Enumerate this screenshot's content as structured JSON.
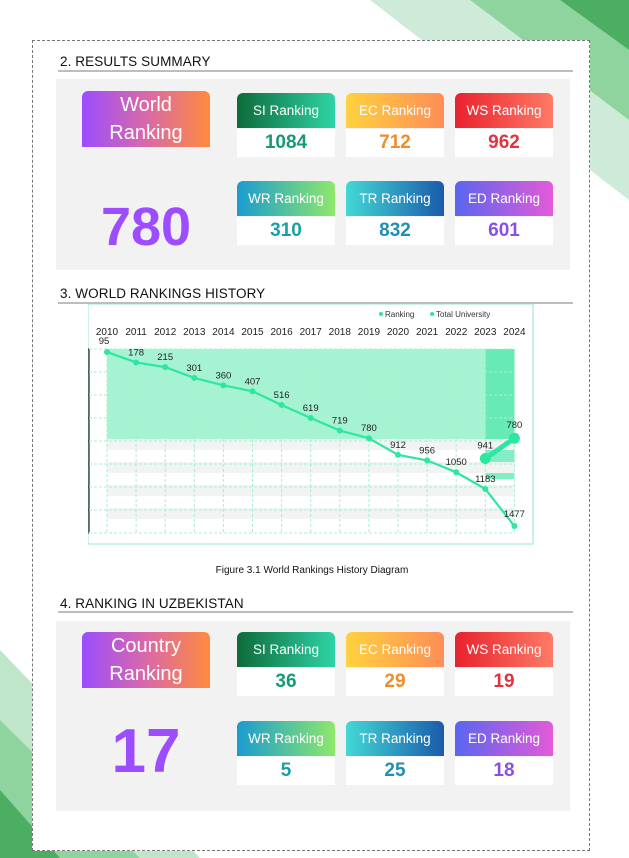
{
  "colors": {
    "accent_purple": "#9b4dff",
    "accent_orange": "#ff8a3d",
    "line_green": "#2ee6a0"
  },
  "summary": {
    "title": "2. RESULTS SUMMARY",
    "main_label": "World\nRanking",
    "main_value": "780",
    "cards": [
      {
        "label": "SI Ranking",
        "value": "1084",
        "color": "#179b76"
      },
      {
        "label": "EC Ranking",
        "value": "712",
        "color": "#f08c2a"
      },
      {
        "label": "WS Ranking",
        "value": "962",
        "color": "#e5323f"
      },
      {
        "label": "WR Ranking",
        "value": "310",
        "color": "#1a9fa8"
      },
      {
        "label": "TR Ranking",
        "value": "832",
        "color": "#1f8fb2"
      },
      {
        "label": "ED Ranking",
        "value": "601",
        "color": "#8b4fe6"
      }
    ]
  },
  "history": {
    "title": "3. WORLD RANKINGS HISTORY",
    "caption": "Figure 3.1 World Rankings History Diagram",
    "legend": [
      "Ranking",
      "Total University"
    ]
  },
  "chart_data": {
    "type": "line",
    "x": [
      "2010",
      "2011",
      "2012",
      "2013",
      "2014",
      "2015",
      "2016",
      "2017",
      "2018",
      "2019",
      "2020",
      "2021",
      "2022",
      "2023",
      "2024"
    ],
    "series": [
      {
        "name": "Ranking",
        "values": [
          95,
          178,
          215,
          301,
          360,
          407,
          516,
          619,
          719,
          780,
          912,
          956,
          1050,
          1183,
          1477
        ]
      },
      {
        "name": "Total University",
        "values": [
          null,
          null,
          null,
          null,
          null,
          null,
          null,
          null,
          null,
          null,
          null,
          null,
          null,
          941,
          780
        ]
      }
    ]
  },
  "country": {
    "title": "4. RANKING IN UZBEKISTAN",
    "main_label": "Country\nRanking",
    "main_value": "17",
    "cards": [
      {
        "label": "SI Ranking",
        "value": "36",
        "color": "#179b76"
      },
      {
        "label": "EC Ranking",
        "value": "29",
        "color": "#f08c2a"
      },
      {
        "label": "WS Ranking",
        "value": "19",
        "color": "#e5323f"
      },
      {
        "label": "WR Ranking",
        "value": "5",
        "color": "#1a9fa8"
      },
      {
        "label": "TR Ranking",
        "value": "25",
        "color": "#1f8fb2"
      },
      {
        "label": "ED Ranking",
        "value": "18",
        "color": "#8b4fe6"
      }
    ]
  }
}
